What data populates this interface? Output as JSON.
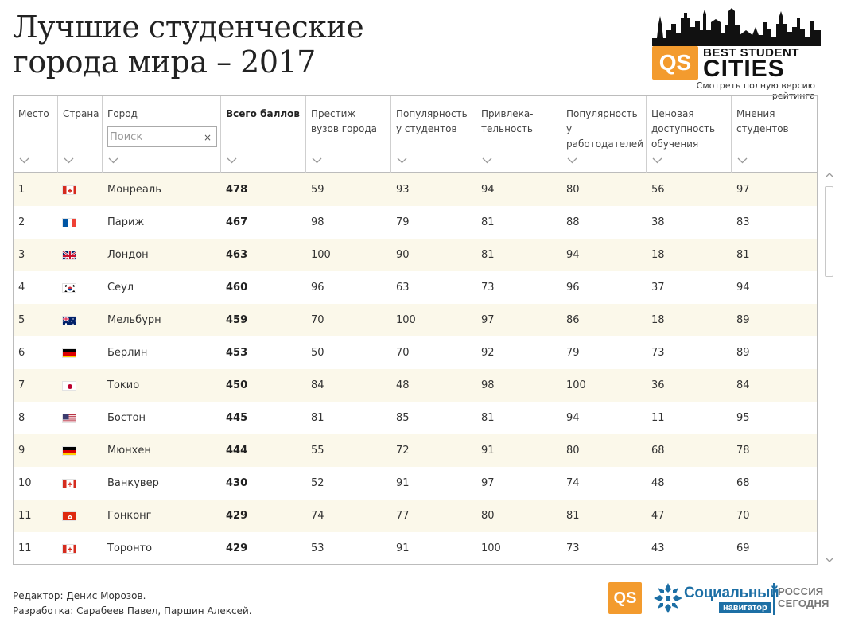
{
  "page": {
    "title_line1": "Лучшие студенческие",
    "title_line2": "города мира – 2017"
  },
  "logo": {
    "qs": "QS",
    "line1": "BEST STUDENT",
    "line2": "CITIES",
    "link": "Смотреть полную версию рейтинга"
  },
  "table": {
    "headers": [
      "Место",
      "Страна",
      "Город",
      "Всего баллов",
      "Престиж вузов города",
      "Популярность у студентов",
      "Привлека-тельность",
      "Популярность у работодателей",
      "Ценовая доступность обучения",
      "Мнения студентов"
    ],
    "search_placeholder": "Поиск",
    "search_clear": "×",
    "rows": [
      {
        "rank": "1",
        "flag": "ca",
        "city": "Монреаль",
        "total": "478",
        "prestige": "59",
        "popularity": "93",
        "attractiveness": "94",
        "employers": "80",
        "affordability": "56",
        "opinions": "97"
      },
      {
        "rank": "2",
        "flag": "fr",
        "city": "Париж",
        "total": "467",
        "prestige": "98",
        "popularity": "79",
        "attractiveness": "81",
        "employers": "88",
        "affordability": "38",
        "opinions": "83"
      },
      {
        "rank": "3",
        "flag": "gb",
        "city": "Лондон",
        "total": "463",
        "prestige": "100",
        "popularity": "90",
        "attractiveness": "81",
        "employers": "94",
        "affordability": "18",
        "opinions": "81"
      },
      {
        "rank": "4",
        "flag": "kr",
        "city": "Сеул",
        "total": "460",
        "prestige": "96",
        "popularity": "63",
        "attractiveness": "73",
        "employers": "96",
        "affordability": "37",
        "opinions": "94"
      },
      {
        "rank": "5",
        "flag": "au",
        "city": "Мельбурн",
        "total": "459",
        "prestige": "70",
        "popularity": "100",
        "attractiveness": "97",
        "employers": "86",
        "affordability": "18",
        "opinions": "89"
      },
      {
        "rank": "6",
        "flag": "de",
        "city": "Берлин",
        "total": "453",
        "prestige": "50",
        "popularity": "70",
        "attractiveness": "92",
        "employers": "79",
        "affordability": "73",
        "opinions": "89"
      },
      {
        "rank": "7",
        "flag": "jp",
        "city": "Токио",
        "total": "450",
        "prestige": "84",
        "popularity": "48",
        "attractiveness": "98",
        "employers": "100",
        "affordability": "36",
        "opinions": "84"
      },
      {
        "rank": "8",
        "flag": "us",
        "city": "Бостон",
        "total": "445",
        "prestige": "81",
        "popularity": "85",
        "attractiveness": "81",
        "employers": "94",
        "affordability": "11",
        "opinions": "95"
      },
      {
        "rank": "9",
        "flag": "de",
        "city": "Мюнхен",
        "total": "444",
        "prestige": "55",
        "popularity": "72",
        "attractiveness": "91",
        "employers": "80",
        "affordability": "68",
        "opinions": "78"
      },
      {
        "rank": "10",
        "flag": "ca",
        "city": "Ванкувер",
        "total": "430",
        "prestige": "52",
        "popularity": "91",
        "attractiveness": "97",
        "employers": "74",
        "affordability": "48",
        "opinions": "68"
      },
      {
        "rank": "11",
        "flag": "hk",
        "city": "Гонконг",
        "total": "429",
        "prestige": "74",
        "popularity": "77",
        "attractiveness": "80",
        "employers": "81",
        "affordability": "47",
        "opinions": "70"
      },
      {
        "rank": "11",
        "flag": "ca",
        "city": "Торонто",
        "total": "429",
        "prestige": "53",
        "popularity": "91",
        "attractiveness": "100",
        "employers": "73",
        "affordability": "43",
        "opinions": "69"
      }
    ]
  },
  "footer": {
    "editor": "Редактор: Денис Морозов.",
    "developers": "Разработка: Сарабеев Павел, Паршин Алексей.",
    "qs": "QS",
    "sn_title": "Социальный",
    "sn_sub": "навигатор",
    "rs_line1": "РОССИЯ",
    "rs_line2": "СЕГОДНЯ"
  },
  "colors": {
    "row_highlight": "#fbf8ea",
    "qs_orange": "#f39b2e",
    "navigator_blue": "#1d6fa5"
  },
  "icons": [
    "skyline-icon",
    "sort-chevron-icon",
    "clear-search-icon",
    "scroll-up-icon",
    "scroll-down-icon",
    "flag-icon",
    "snowflake-icon"
  ]
}
